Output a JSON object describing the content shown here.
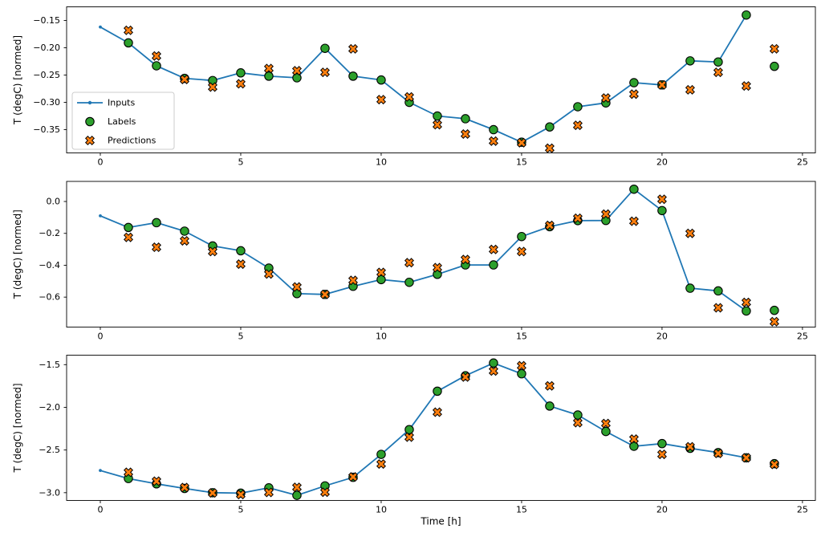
{
  "figure": {
    "title": "",
    "xlabel": "Time [h]",
    "background": "#ffffff",
    "colors": {
      "inputs": "#1f77b4",
      "labels": "#2ca02c",
      "predictions": "#ff7f0e",
      "marker_edge": "#000000",
      "spine": "#000000",
      "legend_border": "#cccccc"
    },
    "xticks": {
      "values": [
        0,
        5,
        10,
        15,
        20,
        25
      ],
      "labels": [
        "0",
        "5",
        "10",
        "15",
        "20",
        "25"
      ]
    },
    "legend": {
      "position": "upper-left-of-first-subplot",
      "items": [
        {
          "label": "Inputs",
          "marker": "line-dot",
          "color": "#1f77b4"
        },
        {
          "label": "Labels",
          "marker": "circle",
          "color": "#2ca02c"
        },
        {
          "label": "Predictions",
          "marker": "x",
          "color": "#ff7f0e"
        }
      ]
    }
  },
  "chart_data": [
    {
      "type": "line",
      "title": "",
      "xlabel": "",
      "ylabel": "T (degC) [normed]",
      "grid": false,
      "legend": true,
      "xlim": [
        -1.2,
        25.46
      ],
      "ylim": [
        -0.3926,
        -0.125
      ],
      "yticks": {
        "values": [
          -0.15,
          -0.2,
          -0.25,
          -0.3,
          -0.35
        ],
        "labels": [
          "−0.15",
          "−0.20",
          "−0.25",
          "−0.30",
          "−0.35"
        ]
      },
      "series": {
        "inputs": {
          "x": [
            0,
            1,
            2,
            3,
            4,
            5,
            6,
            7,
            8,
            9,
            10,
            11,
            12,
            13,
            14,
            15,
            16,
            17,
            18,
            19,
            20,
            21,
            22,
            23
          ],
          "y": [
            -0.162,
            -0.191,
            -0.233,
            -0.256,
            -0.26,
            -0.246,
            -0.252,
            -0.255,
            -0.201,
            -0.252,
            -0.259,
            -0.3,
            -0.325,
            -0.33,
            -0.35,
            -0.373,
            -0.345,
            -0.308,
            -0.301,
            -0.264,
            -0.268,
            -0.224,
            -0.226,
            -0.14
          ]
        },
        "labels": {
          "x": [
            1,
            2,
            3,
            4,
            5,
            6,
            7,
            8,
            9,
            10,
            11,
            12,
            13,
            14,
            15,
            16,
            17,
            18,
            19,
            20,
            21,
            22,
            23,
            24
          ],
          "y": [
            -0.191,
            -0.233,
            -0.256,
            -0.26,
            -0.246,
            -0.252,
            -0.255,
            -0.201,
            -0.252,
            -0.259,
            -0.3,
            -0.325,
            -0.33,
            -0.35,
            -0.373,
            -0.345,
            -0.308,
            -0.301,
            -0.264,
            -0.268,
            -0.224,
            -0.226,
            -0.14,
            -0.234
          ]
        },
        "predictions": {
          "x": [
            1,
            2,
            3,
            4,
            5,
            6,
            7,
            8,
            9,
            10,
            11,
            12,
            13,
            14,
            15,
            16,
            17,
            18,
            19,
            20,
            21,
            22,
            23,
            24
          ],
          "y": [
            -0.168,
            -0.215,
            -0.258,
            -0.272,
            -0.266,
            -0.238,
            -0.242,
            -0.245,
            -0.202,
            -0.295,
            -0.29,
            -0.341,
            -0.358,
            -0.371,
            -0.374,
            -0.384,
            -0.342,
            -0.292,
            -0.285,
            -0.268,
            -0.277,
            -0.245,
            -0.27,
            -0.202
          ]
        }
      }
    },
    {
      "type": "line",
      "title": "",
      "xlabel": "",
      "ylabel": "T (degC) [normed]",
      "grid": false,
      "legend": false,
      "xlim": [
        -1.2,
        25.46
      ],
      "ylim": [
        -0.788,
        0.126
      ],
      "yticks": {
        "values": [
          0.0,
          -0.2,
          -0.4,
          -0.6
        ],
        "labels": [
          "0.0",
          "−0.2",
          "−0.4",
          "−0.6"
        ]
      },
      "series": {
        "inputs": {
          "x": [
            0,
            1,
            2,
            3,
            4,
            5,
            6,
            7,
            8,
            9,
            10,
            11,
            12,
            13,
            14,
            15,
            16,
            17,
            18,
            19,
            20,
            21,
            22,
            23
          ],
          "y": [
            -0.09,
            -0.163,
            -0.133,
            -0.186,
            -0.279,
            -0.309,
            -0.418,
            -0.578,
            -0.583,
            -0.532,
            -0.49,
            -0.507,
            -0.457,
            -0.398,
            -0.398,
            -0.22,
            -0.158,
            -0.12,
            -0.119,
            0.077,
            -0.057,
            -0.544,
            -0.561,
            -0.687
          ]
        },
        "labels": {
          "x": [
            1,
            2,
            3,
            4,
            5,
            6,
            7,
            8,
            9,
            10,
            11,
            12,
            13,
            14,
            15,
            16,
            17,
            18,
            19,
            20,
            21,
            22,
            23,
            24
          ],
          "y": [
            -0.163,
            -0.133,
            -0.186,
            -0.279,
            -0.309,
            -0.418,
            -0.578,
            -0.583,
            -0.532,
            -0.49,
            -0.507,
            -0.457,
            -0.398,
            -0.398,
            -0.22,
            -0.158,
            -0.12,
            -0.119,
            0.077,
            -0.057,
            -0.544,
            -0.561,
            -0.687,
            -0.683
          ]
        },
        "predictions": {
          "x": [
            1,
            2,
            3,
            4,
            5,
            6,
            7,
            8,
            9,
            10,
            11,
            12,
            13,
            14,
            15,
            16,
            17,
            18,
            19,
            20,
            21,
            22,
            23,
            24
          ],
          "y": [
            -0.225,
            -0.287,
            -0.247,
            -0.314,
            -0.393,
            -0.455,
            -0.536,
            -0.583,
            -0.495,
            -0.445,
            -0.384,
            -0.415,
            -0.364,
            -0.301,
            -0.314,
            -0.15,
            -0.105,
            -0.079,
            -0.124,
            0.014,
            -0.2,
            -0.667,
            -0.633,
            -0.754
          ]
        }
      }
    },
    {
      "type": "line",
      "title": "",
      "xlabel": "Time [h]",
      "ylabel": "T (degC) [normed]",
      "grid": false,
      "legend": false,
      "xlim": [
        -1.2,
        25.46
      ],
      "ylim": [
        -3.091,
        -1.389
      ],
      "yticks": {
        "values": [
          -1.5,
          -2.0,
          -2.5,
          -3.0
        ],
        "labels": [
          "−1.5",
          "−2.0",
          "−2.5",
          "−3.0"
        ]
      },
      "series": {
        "inputs": {
          "x": [
            0,
            1,
            2,
            3,
            4,
            5,
            6,
            7,
            8,
            9,
            10,
            11,
            12,
            13,
            14,
            15,
            16,
            17,
            18,
            19,
            20,
            21,
            22,
            23
          ],
          "y": [
            -2.74,
            -2.834,
            -2.896,
            -2.95,
            -3.0,
            -3.005,
            -2.943,
            -3.031,
            -2.92,
            -2.82,
            -2.551,
            -2.261,
            -1.811,
            -1.63,
            -1.481,
            -1.607,
            -1.985,
            -2.09,
            -2.283,
            -2.456,
            -2.425,
            -2.48,
            -2.53,
            -2.591
          ]
        },
        "labels": {
          "x": [
            1,
            2,
            3,
            4,
            5,
            6,
            7,
            8,
            9,
            10,
            11,
            12,
            13,
            14,
            15,
            16,
            17,
            18,
            19,
            20,
            21,
            22,
            23,
            24
          ],
          "y": [
            -2.834,
            -2.896,
            -2.95,
            -3.0,
            -3.005,
            -2.943,
            -3.031,
            -2.92,
            -2.82,
            -2.551,
            -2.261,
            -1.811,
            -1.63,
            -1.481,
            -1.607,
            -1.985,
            -2.09,
            -2.283,
            -2.456,
            -2.425,
            -2.48,
            -2.53,
            -2.591,
            -2.66
          ]
        },
        "predictions": {
          "x": [
            1,
            2,
            3,
            4,
            5,
            6,
            7,
            8,
            9,
            10,
            11,
            12,
            13,
            14,
            15,
            16,
            17,
            18,
            19,
            20,
            21,
            22,
            23,
            24
          ],
          "y": [
            -2.761,
            -2.865,
            -2.94,
            -3.003,
            -3.022,
            -2.997,
            -2.937,
            -2.995,
            -2.815,
            -2.664,
            -2.349,
            -2.057,
            -1.645,
            -1.575,
            -1.513,
            -1.749,
            -2.18,
            -2.189,
            -2.372,
            -2.551,
            -2.462,
            -2.54,
            -2.591,
            -2.669
          ]
        }
      }
    }
  ]
}
